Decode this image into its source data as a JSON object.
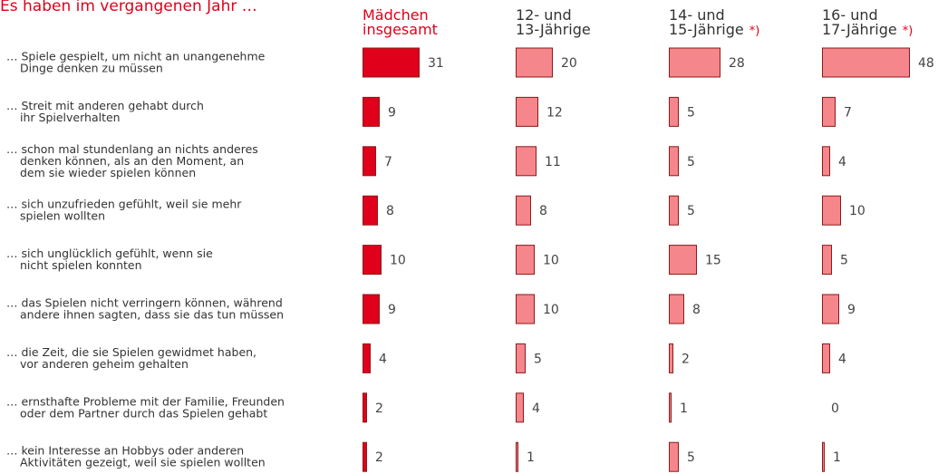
{
  "chart_data": {
    "type": "bar",
    "orientation": "horizontal",
    "title": "Es haben im vergangenen Jahr …",
    "categories": [
      [
        "… Spiele gespielt, um nicht an unangenehme",
        "Dinge denken zu müssen"
      ],
      [
        "… Streit mit anderen gehabt durch",
        "ihr Spielverhalten"
      ],
      [
        "… schon mal stundenlang an nichts anderes",
        "denken können, als an den Moment, an",
        "dem sie wieder spielen können"
      ],
      [
        "… sich unzufrieden gefühlt, weil sie mehr",
        "spielen wollten"
      ],
      [
        "… sich unglücklich gefühlt, wenn sie",
        "nicht spielen konnten"
      ],
      [
        "… das Spielen nicht verringern können, während",
        "andere ihnen sagten, dass sie das tun müssen"
      ],
      [
        "… die Zeit, die sie Spielen gewidmet haben,",
        "vor anderen geheim gehalten"
      ],
      [
        "… ernsthafte Probleme mit der Familie, Freunden",
        "oder dem Partner durch das Spielen gehabt"
      ],
      [
        "… kein Interesse an Hobbys oder anderen",
        "Aktivitäten gezeigt, weil sie spielen wollten"
      ]
    ],
    "series": [
      {
        "name": [
          "Mädchen",
          "insgesamt"
        ],
        "color": "#e0001b",
        "header_color": "#e0001b",
        "values": [
          31,
          9,
          7,
          8,
          10,
          9,
          4,
          2,
          2
        ]
      },
      {
        "name": [
          "12- und",
          "13-Jährige"
        ],
        "color": "#f5868b",
        "header_color": "#333333",
        "values": [
          20,
          12,
          11,
          8,
          10,
          10,
          5,
          4,
          1
        ]
      },
      {
        "name": [
          "14- und",
          "15-Jährige"
        ],
        "footnote": "*)",
        "color": "#f5868b",
        "header_color": "#333333",
        "values": [
          28,
          5,
          5,
          5,
          15,
          8,
          2,
          1,
          5
        ]
      },
      {
        "name": [
          "16- und",
          "17-Jährige"
        ],
        "footnote": "*)",
        "color": "#f5868b",
        "header_color": "#333333",
        "values": [
          48,
          7,
          4,
          10,
          5,
          9,
          4,
          0,
          1
        ]
      }
    ]
  }
}
